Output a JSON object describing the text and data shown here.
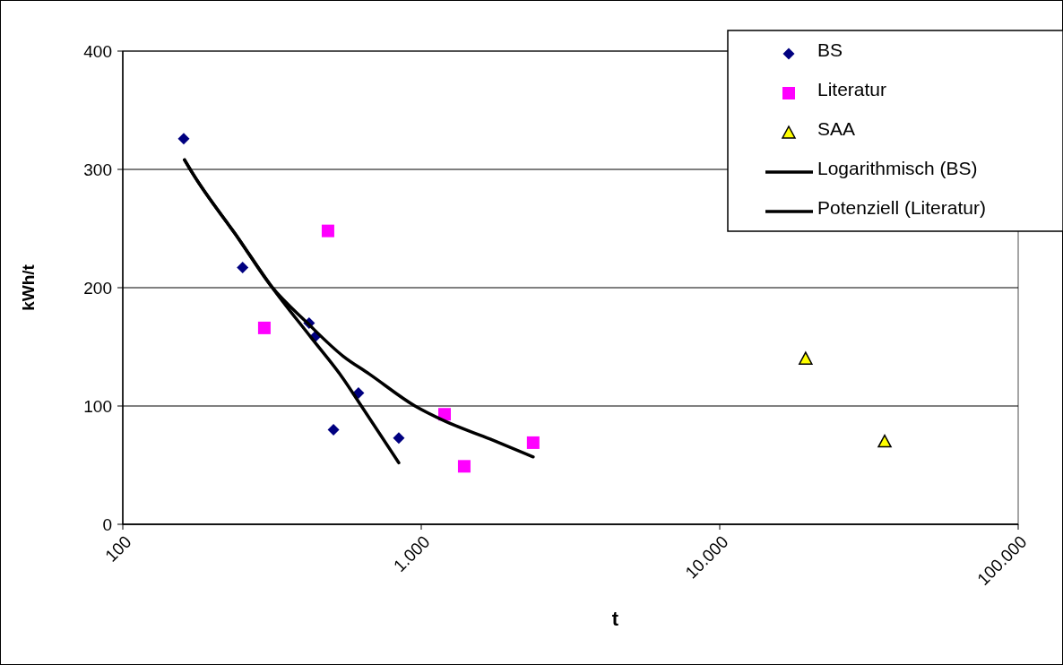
{
  "chart_data": {
    "type": "scatter",
    "xlabel": "t",
    "ylabel": "kWh/t",
    "log": "x",
    "xlim": [
      100,
      100000
    ],
    "xticks": [
      100,
      {
        "value": 1000,
        "label": "1.000"
      },
      {
        "value": 10000,
        "label": "10.000"
      },
      {
        "value": 100000,
        "label": "100.000"
      }
    ],
    "ylim": [
      0,
      400
    ],
    "yticks": [
      0,
      100,
      200,
      300,
      400
    ],
    "grid": "y",
    "legend": "top right",
    "series": [
      {
        "name": "BS",
        "color": "#000080",
        "marker": "diamond",
        "x": [
          160,
          252,
          421,
          443,
          616,
          508,
          841
        ],
        "values": [
          326,
          217,
          170,
          159,
          111,
          80,
          73
        ]
      },
      {
        "name": "Literatur",
        "color": "#ff00ff",
        "marker": "square",
        "x": [
          298,
          487,
          1197,
          1393,
          2371
        ],
        "values": [
          166,
          248,
          93,
          49,
          69
        ]
      },
      {
        "name": "SAA",
        "color": "#ffff00",
        "marker": "triangle",
        "x": [
          19400,
          35700
        ],
        "values": [
          140,
          70
        ]
      },
      {
        "name": "Logarithmisch (BS)",
        "type": "line",
        "color": "#000000",
        "x": [
          161,
          171,
          245,
          315,
          427,
          548,
          630,
          841
        ],
        "values": [
          308,
          297,
          241,
          201,
          158,
          123,
          100,
          52
        ]
      },
      {
        "name": "Potenziell (Literatur)",
        "type": "line",
        "color": "#000000",
        "x": [
          161,
          171,
          245,
          315,
          416,
          548,
          670,
          953,
          1205,
          1702,
          2371
        ],
        "values": [
          308,
          297,
          241,
          201,
          170,
          142,
          127,
          100,
          87,
          72,
          57
        ]
      }
    ]
  }
}
